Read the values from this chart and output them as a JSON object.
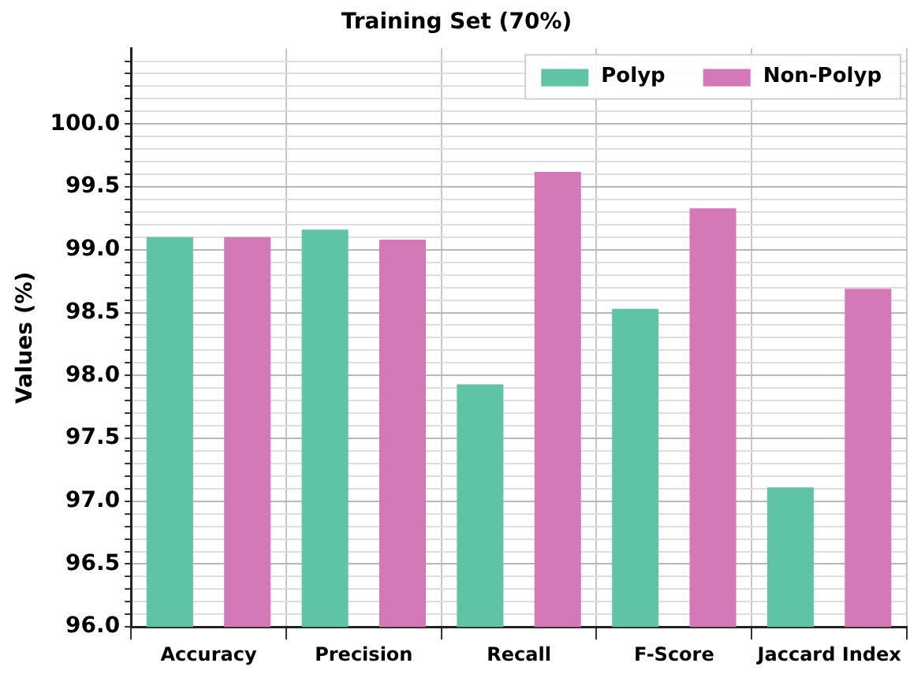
{
  "chart_data": {
    "type": "bar",
    "title": "Training Set (70%)",
    "ylabel": "Values (%)",
    "categories": [
      "Accuracy",
      "Precision",
      "Recall",
      "F-Score",
      "Jaccard Index"
    ],
    "series": [
      {
        "name": "Polyp",
        "color": "#5fc4a6",
        "values": [
          99.1,
          99.16,
          97.93,
          98.53,
          97.11
        ]
      },
      {
        "name": "Non-Polyp",
        "color": "#d478b8",
        "values": [
          99.1,
          99.08,
          99.62,
          99.33,
          98.69
        ]
      }
    ],
    "ylim": [
      96,
      100.6
    ],
    "yticks": [
      {
        "value": 96,
        "label": "96.0"
      },
      {
        "value": 96.1,
        "label": null
      },
      {
        "value": 96.2,
        "label": null
      },
      {
        "value": 96.3,
        "label": null
      },
      {
        "value": 96.4,
        "label": null
      },
      {
        "value": 96.5,
        "label": "96.5"
      },
      {
        "value": 96.6,
        "label": null
      },
      {
        "value": 96.7,
        "label": null
      },
      {
        "value": 96.8,
        "label": null
      },
      {
        "value": 96.9,
        "label": null
      },
      {
        "value": 97,
        "label": "97.0"
      },
      {
        "value": 97.1,
        "label": null
      },
      {
        "value": 97.2,
        "label": null
      },
      {
        "value": 97.3,
        "label": null
      },
      {
        "value": 97.4,
        "label": null
      },
      {
        "value": 97.5,
        "label": "97.5"
      },
      {
        "value": 97.6,
        "label": null
      },
      {
        "value": 97.7,
        "label": null
      },
      {
        "value": 97.8,
        "label": null
      },
      {
        "value": 97.9,
        "label": null
      },
      {
        "value": 98,
        "label": "98.0"
      },
      {
        "value": 98.1,
        "label": null
      },
      {
        "value": 98.2,
        "label": null
      },
      {
        "value": 98.3,
        "label": null
      },
      {
        "value": 98.4,
        "label": null
      },
      {
        "value": 98.5,
        "label": "98.5"
      },
      {
        "value": 98.6,
        "label": null
      },
      {
        "value": 98.7,
        "label": null
      },
      {
        "value": 98.8,
        "label": null
      },
      {
        "value": 98.9,
        "label": null
      },
      {
        "value": 99,
        "label": "99.0"
      },
      {
        "value": 99.1,
        "label": null
      },
      {
        "value": 99.2,
        "label": null
      },
      {
        "value": 99.3,
        "label": null
      },
      {
        "value": 99.4,
        "label": null
      },
      {
        "value": 99.5,
        "label": "99.5"
      },
      {
        "value": 99.6,
        "label": null
      },
      {
        "value": 99.7,
        "label": null
      },
      {
        "value": 99.8,
        "label": null
      },
      {
        "value": 99.9,
        "label": null
      },
      {
        "value": 100,
        "label": "100.0"
      },
      {
        "value": 100.1,
        "label": null
      },
      {
        "value": 100.2,
        "label": null
      },
      {
        "value": 100.3,
        "label": null
      },
      {
        "value": 100.4,
        "label": null
      },
      {
        "value": 100.5,
        "label": null
      }
    ],
    "grid": true,
    "legend": "top right"
  }
}
